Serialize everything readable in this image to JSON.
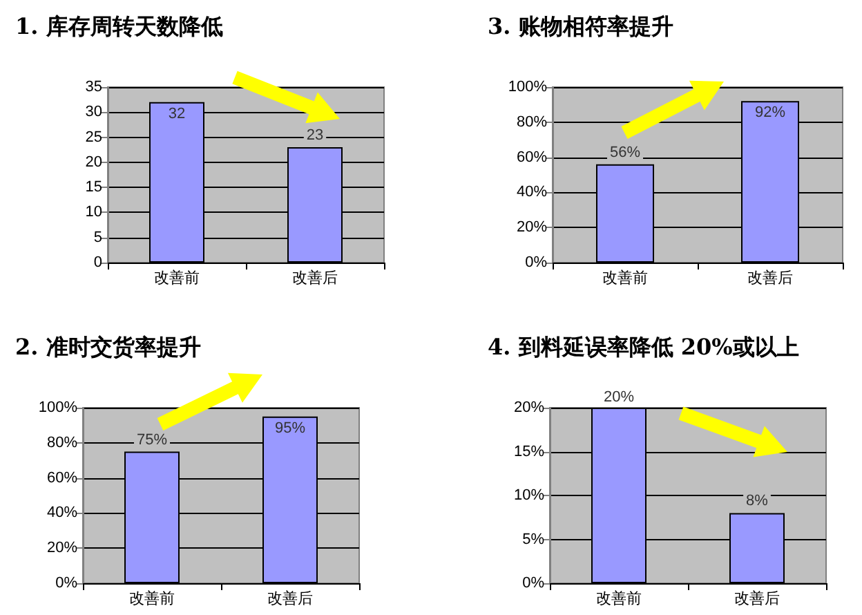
{
  "chart_data": [
    {
      "type": "bar",
      "title": "1. 库存周转天数降低",
      "categories": [
        "改善前",
        "改善后"
      ],
      "values": [
        32,
        23
      ],
      "color": "#9999ff",
      "ylim": [
        0,
        35
      ],
      "yticks": [
        0,
        5,
        10,
        15,
        20,
        25,
        30,
        35
      ],
      "grid": "y",
      "data_labels": true
    },
    {
      "type": "bar",
      "title": "3. 账物相符率提升",
      "categories": [
        "改善前",
        "改善后"
      ],
      "values": [
        56,
        92
      ],
      "value_labels": [
        "56%",
        "92%"
      ],
      "color": "#9999ff",
      "ylim": [
        0,
        100
      ],
      "yticks": [
        {
          "value": 0,
          "label": "0%"
        },
        {
          "value": 20,
          "label": "20%"
        },
        {
          "value": 40,
          "label": "40%"
        },
        {
          "value": 60,
          "label": "60%"
        },
        {
          "value": 80,
          "label": "80%"
        },
        {
          "value": 100,
          "label": "100%"
        }
      ],
      "grid": "y"
    },
    {
      "type": "bar",
      "title": "2. 准时交货率提升",
      "categories": [
        "改善前",
        "改善后"
      ],
      "values": [
        75,
        95
      ],
      "value_labels": [
        "75%",
        "95%"
      ],
      "color": "#9999ff",
      "ylim": [
        0,
        100
      ],
      "yticks": [
        {
          "value": 0,
          "label": "0%"
        },
        {
          "value": 20,
          "label": "20%"
        },
        {
          "value": 40,
          "label": "40%"
        },
        {
          "value": 60,
          "label": "60%"
        },
        {
          "value": 80,
          "label": "80%"
        },
        {
          "value": 100,
          "label": "100%"
        }
      ],
      "grid": "y"
    },
    {
      "type": "bar",
      "title": "4. 到料延误率降低 20%或以上",
      "categories": [
        "改善前",
        "改善后"
      ],
      "values": [
        20,
        8
      ],
      "value_labels": [
        "20%",
        "8%"
      ],
      "color": "#9999ff",
      "ylim": [
        0,
        20
      ],
      "yticks": [
        {
          "value": 0,
          "label": "0%"
        },
        {
          "value": 5,
          "label": "5%"
        },
        {
          "value": 10,
          "label": "10%"
        },
        {
          "value": 15,
          "label": "15%"
        },
        {
          "value": 20,
          "label": "20%"
        }
      ],
      "grid": "y"
    }
  ]
}
